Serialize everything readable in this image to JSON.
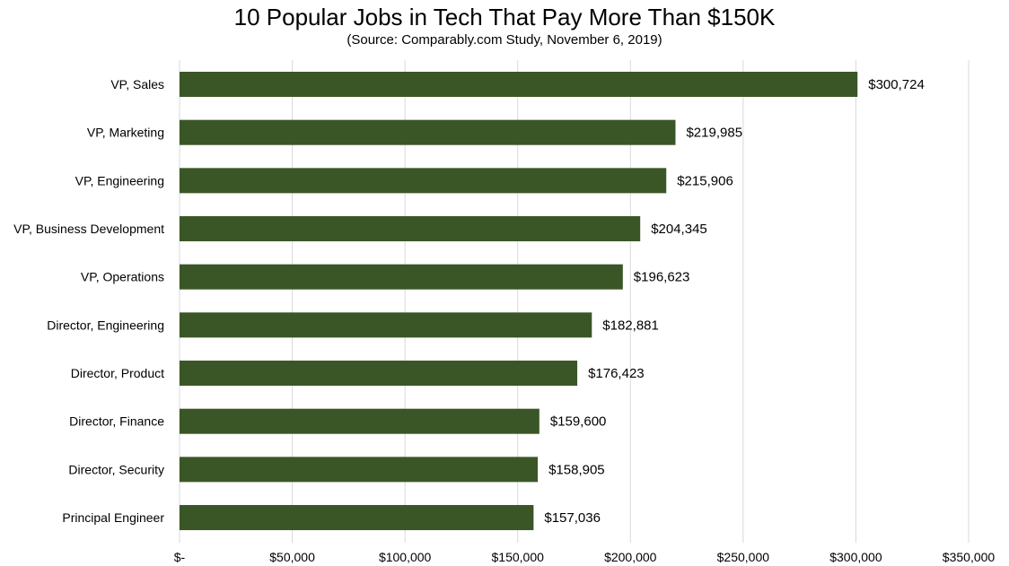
{
  "chart_data": {
    "type": "bar",
    "orientation": "horizontal",
    "title": "10 Popular Jobs in Tech That Pay More Than $150K",
    "subtitle": "(Source: Comparably.com Study, November 6, 2019)",
    "categories": [
      "VP, Sales",
      "VP, Marketing",
      "VP, Engineering",
      "VP, Business Development",
      "VP, Operations",
      "Director, Engineering",
      "Director, Product",
      "Director, Finance",
      "Director, Security",
      "Principal Engineer"
    ],
    "values": [
      300724,
      219985,
      215906,
      204345,
      196623,
      182881,
      176423,
      159600,
      158905,
      157036
    ],
    "data_labels": [
      "$300,724",
      "$219,985",
      "$215,906",
      "$204,345",
      "$196,623",
      "$182,881",
      "$176,423",
      "$159,600",
      "$158,905",
      "$157,036"
    ],
    "xlim": [
      0,
      350000
    ],
    "x_ticks": [
      0,
      50000,
      100000,
      150000,
      200000,
      250000,
      300000,
      350000
    ],
    "x_tick_labels": [
      "$-",
      "$50,000",
      "$100,000",
      "$150,000",
      "$200,000",
      "$250,000",
      "$300,000",
      "$350,000"
    ],
    "grid": "vertical",
    "legend": "none",
    "bar_color": "#3a5626",
    "grid_color": "#d9d9d9"
  }
}
